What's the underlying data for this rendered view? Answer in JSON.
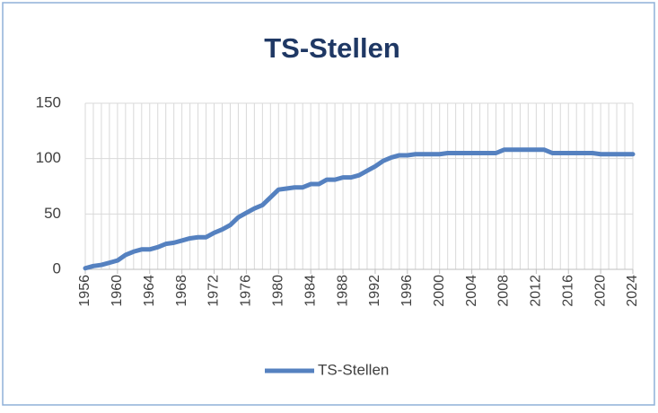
{
  "chart_data": {
    "type": "line",
    "title": "TS-Stellen",
    "x": [
      1956,
      1957,
      1958,
      1959,
      1960,
      1961,
      1962,
      1963,
      1964,
      1965,
      1966,
      1967,
      1968,
      1969,
      1970,
      1971,
      1972,
      1973,
      1974,
      1975,
      1976,
      1977,
      1978,
      1979,
      1980,
      1981,
      1982,
      1983,
      1984,
      1985,
      1986,
      1987,
      1988,
      1989,
      1990,
      1991,
      1992,
      1993,
      1994,
      1995,
      1996,
      1997,
      1998,
      1999,
      2000,
      2001,
      2002,
      2003,
      2004,
      2005,
      2006,
      2007,
      2008,
      2009,
      2010,
      2011,
      2012,
      2013,
      2014,
      2015,
      2016,
      2017,
      2018,
      2019,
      2020,
      2021,
      2022,
      2023,
      2024
    ],
    "series": [
      {
        "name": "TS-Stellen",
        "color": "#5581c0",
        "values": [
          1,
          3,
          4,
          6,
          8,
          13,
          16,
          18,
          18,
          20,
          23,
          24,
          26,
          28,
          29,
          29,
          33,
          36,
          40,
          47,
          51,
          55,
          58,
          65,
          72,
          73,
          74,
          74,
          77,
          77,
          81,
          81,
          83,
          83,
          85,
          89,
          93,
          98,
          101,
          103,
          103,
          104,
          104,
          104,
          104,
          105,
          105,
          105,
          105,
          105,
          105,
          105,
          108,
          108,
          108,
          108,
          108,
          108,
          105,
          105,
          105,
          105,
          105,
          105,
          104,
          104,
          104,
          104,
          104
        ]
      }
    ],
    "xlim": [
      1956,
      2024
    ],
    "xticks": [
      1956,
      1960,
      1964,
      1968,
      1972,
      1976,
      1980,
      1984,
      1988,
      1992,
      1996,
      2000,
      2004,
      2008,
      2012,
      2016,
      2020,
      2024
    ],
    "ylim": [
      0,
      150
    ],
    "yticks": [
      0,
      50,
      100,
      150
    ],
    "grid": true,
    "legend": "bottom"
  }
}
